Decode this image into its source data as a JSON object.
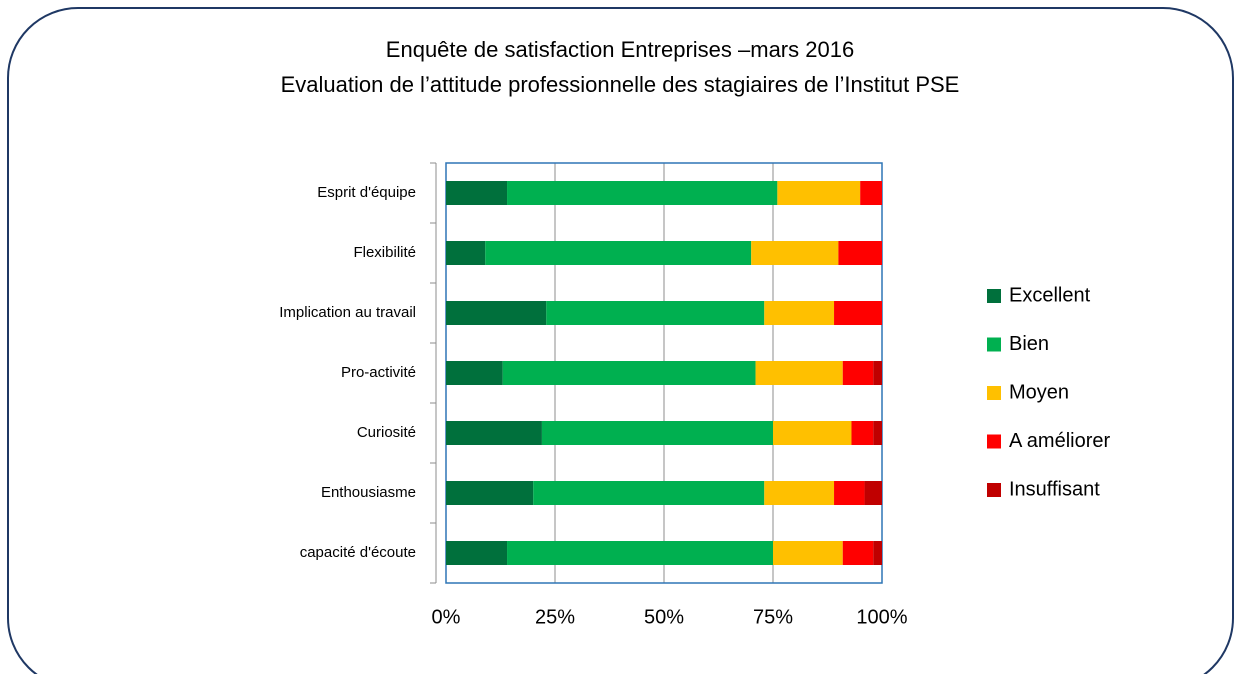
{
  "chart_data": {
    "type": "stacked-bar-horizontal",
    "title": "Enquête de satisfaction Entreprises –mars 2016",
    "subtitle": "Evaluation de l’attitude professionnelle des stagiaires de l’Institut PSE",
    "categories": [
      "Esprit d'équipe",
      "Flexibilité",
      "Implication au travail",
      "Pro-activité",
      "Curiosité",
      "Enthousiasme",
      "capacité d'écoute"
    ],
    "series": [
      {
        "name": "Excellent",
        "color": "#00703c",
        "values": [
          14,
          9,
          23,
          13,
          22,
          20,
          14
        ]
      },
      {
        "name": "Bien",
        "color": "#00b050",
        "values": [
          62,
          61,
          50,
          58,
          53,
          53,
          61
        ]
      },
      {
        "name": "Moyen",
        "color": "#ffc000",
        "values": [
          19,
          20,
          16,
          20,
          18,
          16,
          16
        ]
      },
      {
        "name": "A améliorer",
        "color": "#ff0000",
        "values": [
          5,
          10,
          11,
          7,
          5,
          7,
          7
        ]
      },
      {
        "name": "Insuffisant",
        "color": "#c00000",
        "values": [
          0,
          0,
          0,
          2,
          2,
          4,
          2
        ]
      }
    ],
    "xlim": [
      0,
      100
    ],
    "xticks": [
      {
        "value": 0,
        "label": "0%"
      },
      {
        "value": 25,
        "label": "25%"
      },
      {
        "value": 50,
        "label": "50%"
      },
      {
        "value": 75,
        "label": "75%"
      },
      {
        "value": 100,
        "label": "100%"
      }
    ],
    "grid": true,
    "legend": "right"
  }
}
